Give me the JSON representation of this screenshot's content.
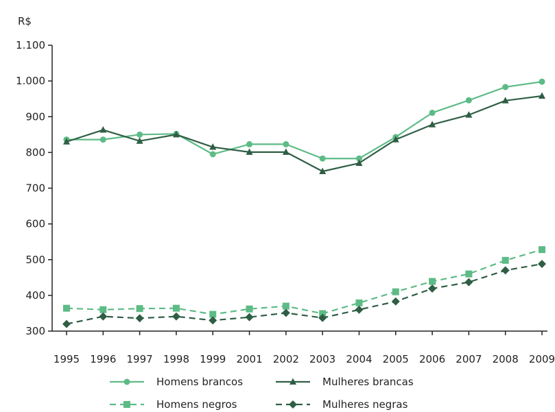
{
  "chart_data": {
    "type": "line",
    "unit_label": "R$",
    "x": [
      "1995",
      "1996",
      "1997",
      "1998",
      "1999",
      "2001",
      "2002",
      "2003",
      "2004",
      "2005",
      "2006",
      "2007",
      "2008",
      "2009"
    ],
    "yticks": [
      "300",
      "400",
      "500",
      "600",
      "700",
      "800",
      "900",
      "1.000",
      "1.100"
    ],
    "ylim": [
      300,
      1100
    ],
    "grid": false,
    "legend_position": "bottom",
    "series": [
      {
        "name": "Homens brancos",
        "marker": "circle",
        "dashed": false,
        "color": "#5dbb86",
        "values": [
          836,
          836,
          850,
          852,
          795,
          823,
          823,
          783,
          783,
          843,
          911,
          946,
          983,
          998
        ]
      },
      {
        "name": "Mulheres brancas",
        "marker": "triangle",
        "dashed": false,
        "color": "#2f5e45",
        "values": [
          830,
          863,
          832,
          850,
          815,
          801,
          801,
          747,
          770,
          836,
          878,
          905,
          945,
          958
        ]
      },
      {
        "name": "Homens negros",
        "marker": "square",
        "dashed": true,
        "color": "#5dbb86",
        "values": [
          364,
          360,
          363,
          364,
          347,
          362,
          370,
          349,
          379,
          410,
          439,
          460,
          498,
          528
        ]
      },
      {
        "name": "Mulheres negras",
        "marker": "diamond",
        "dashed": true,
        "color": "#2f5e45",
        "values": [
          320,
          341,
          336,
          341,
          330,
          339,
          351,
          337,
          360,
          383,
          419,
          437,
          470,
          488
        ]
      }
    ]
  }
}
